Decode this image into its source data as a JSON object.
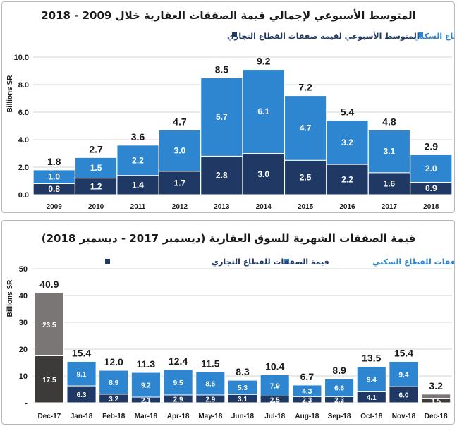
{
  "colors": {
    "residential": "#2e86d1",
    "commercial": "#1f3864",
    "residential_highlight": "#7a7676",
    "commercial_highlight": "#3d3a3a",
    "grid": "#d6d6d6"
  },
  "chart_data": [
    {
      "type": "bar",
      "stacked": true,
      "title": "المتوسط الأسبوعي لإجمالي قيمة الصفقات العقارية خلال 2009 - 2018",
      "ylabel": "Billions SR",
      "ylim": [
        0,
        10
      ],
      "yticks": [
        "0.0",
        "2.0",
        "4.0",
        "6.0",
        "8.0",
        "10.0"
      ],
      "ytick_values": [
        0,
        2,
        4,
        6,
        8,
        10
      ],
      "grid": true,
      "legend_position": "top",
      "categories": [
        "2009",
        "2010",
        "2011",
        "2012",
        "2013",
        "2014",
        "2015",
        "2016",
        "2017",
        "2018"
      ],
      "totals": [
        "1.8",
        "2.7",
        "3.6",
        "4.7",
        "8.5",
        "9.2",
        "7.2",
        "5.4",
        "4.8",
        "2.9"
      ],
      "total_values": [
        1.8,
        2.7,
        3.6,
        4.7,
        8.5,
        9.2,
        7.2,
        5.4,
        4.8,
        2.9
      ],
      "series": [
        {
          "name": "المتوسط الأسبوعي لقيمة صفقات القطاع التجاري",
          "values": [
            0.8,
            1.2,
            1.4,
            1.7,
            2.8,
            3.0,
            2.5,
            2.2,
            1.6,
            0.9
          ],
          "labels": [
            "0.8",
            "1.2",
            "1.4",
            "1.7",
            "2.8",
            "3.0",
            "2.5",
            "2.2",
            "1.6",
            "0.9"
          ]
        },
        {
          "name": "المتوسط الأسبوعي لقيمة صفقات القطاع السكني",
          "values": [
            1.0,
            1.5,
            2.2,
            3.0,
            5.7,
            6.1,
            4.7,
            3.2,
            3.1,
            2.0
          ],
          "labels": [
            "1.0",
            "1.5",
            "2.2",
            "3.0",
            "5.7",
            "6.1",
            "4.7",
            "3.2",
            "3.1",
            "2.0"
          ]
        }
      ]
    },
    {
      "type": "bar",
      "stacked": true,
      "title": "قيمة الصفقات الشهرية للسوق العقارية (ديسمبر 2017 - ديسمبر 2018)",
      "ylabel": "Billions SR",
      "ylim": [
        0,
        50
      ],
      "yticks": [
        "-",
        "10",
        "20",
        "30",
        "40",
        "50"
      ],
      "ytick_values": [
        0,
        10,
        20,
        30,
        40,
        50
      ],
      "grid": true,
      "legend_position": "top",
      "categories": [
        "Dec-17",
        "Jan-18",
        "Feb-18",
        "Mar-18",
        "Apr-18",
        "May-18",
        "Jun-18",
        "Jul-18",
        "Aug-18",
        "Sep-18",
        "Oct-18",
        "Nov-18",
        "Dec-18"
      ],
      "highlight": [
        "Dec-17",
        "Dec-18"
      ],
      "totals": [
        "40.9",
        "15.4",
        "12.0",
        "11.3",
        "12.4",
        "11.5",
        "8.3",
        "10.4",
        "6.7",
        "8.9",
        "13.5",
        "15.4",
        "3.2"
      ],
      "total_values": [
        40.9,
        15.4,
        12.0,
        11.3,
        12.4,
        11.5,
        8.3,
        10.4,
        6.7,
        8.9,
        13.5,
        15.4,
        3.2
      ],
      "series": [
        {
          "name": "قيمة الصفقات للقطاع التجاري",
          "values": [
            17.5,
            6.3,
            3.2,
            2.1,
            2.9,
            2.9,
            3.1,
            2.5,
            2.3,
            2.3,
            4.1,
            6.0,
            1.5
          ],
          "labels": [
            "17.5",
            "6.3",
            "3.2",
            "2.1",
            "2.9",
            "2.9",
            "3.1",
            "2.5",
            "2.3",
            "2.3",
            "4.1",
            "6.0",
            "1.5"
          ]
        },
        {
          "name": "قيمة الصفقات للقطاع السكني",
          "values": [
            23.5,
            9.1,
            8.9,
            9.2,
            9.5,
            8.6,
            5.3,
            7.9,
            4.3,
            6.6,
            9.4,
            9.4,
            1.7
          ],
          "labels": [
            "23.5",
            "9.1",
            "8.9",
            "9.2",
            "9.5",
            "8.6",
            "5.3",
            "7.9",
            "4.3",
            "6.6",
            "9.4",
            "9.4",
            ""
          ]
        }
      ]
    }
  ]
}
